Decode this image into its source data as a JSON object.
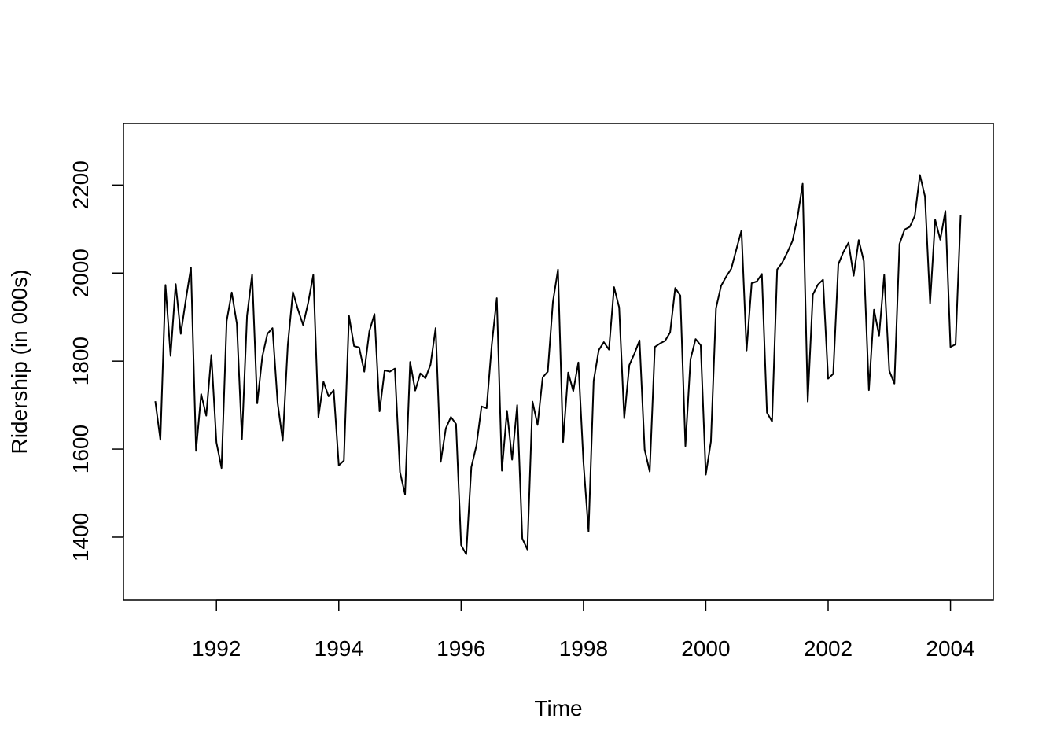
{
  "chart_data": {
    "type": "line",
    "title": "",
    "xlabel": "Time",
    "ylabel": "Ridership (in 000s)",
    "xlim": [
      1990.48,
      2004.7
    ],
    "ylim": [
      1257,
      2340
    ],
    "x_ticks": [
      1992,
      1994,
      1996,
      1998,
      2000,
      2002,
      2004
    ],
    "x_tick_labels": [
      "1992",
      "1994",
      "1996",
      "1998",
      "2000",
      "2002",
      "2004"
    ],
    "y_ticks": [
      1400,
      1600,
      1800,
      2000,
      2200
    ],
    "y_tick_labels": [
      "1400",
      "1600",
      "1800",
      "2000",
      "2200"
    ],
    "grid": false,
    "frame": true,
    "line_color": "#000000",
    "series": [
      {
        "start": 1991,
        "frequency": 12,
        "values": [
          1709,
          1621,
          1973,
          1812,
          1975,
          1862,
          1940,
          2013,
          1596,
          1725,
          1676,
          1814,
          1615,
          1557,
          1891,
          1956,
          1885,
          1623,
          1903,
          1997,
          1704,
          1810,
          1862,
          1875,
          1705,
          1619,
          1837,
          1957,
          1917,
          1882,
          1933,
          1996,
          1673,
          1753,
          1720,
          1734,
          1563,
          1574,
          1903,
          1834,
          1831,
          1776,
          1868,
          1907,
          1686,
          1779,
          1776,
          1783,
          1548,
          1497,
          1798,
          1733,
          1772,
          1761,
          1792,
          1875,
          1571,
          1647,
          1673,
          1657,
          1382,
          1361,
          1559,
          1608,
          1697,
          1693,
          1836,
          1943,
          1551,
          1687,
          1576,
          1700,
          1397,
          1372,
          1708,
          1655,
          1763,
          1776,
          1934,
          2008,
          1616,
          1774,
          1732,
          1797,
          1570,
          1413,
          1755,
          1825,
          1843,
          1826,
          1968,
          1922,
          1670,
          1791,
          1817,
          1847,
          1599,
          1549,
          1832,
          1840,
          1846,
          1865,
          1966,
          1949,
          1607,
          1804,
          1850,
          1836,
          1542,
          1617,
          1920,
          1971,
          1992,
          2010,
          2054,
          2097,
          1824,
          1977,
          1981,
          1998,
          1683,
          1663,
          2008,
          2024,
          2047,
          2073,
          2127,
          2203,
          1708,
          1951,
          1974,
          1985,
          1760,
          1771,
          2020,
          2048,
          2069,
          1994,
          2075,
          2027,
          1734,
          1917,
          1858,
          1996,
          1778,
          1749,
          2066,
          2099,
          2105,
          2130,
          2223,
          2174,
          1931,
          2121,
          2076,
          2141,
          1832,
          1838,
          2132
        ]
      }
    ]
  }
}
